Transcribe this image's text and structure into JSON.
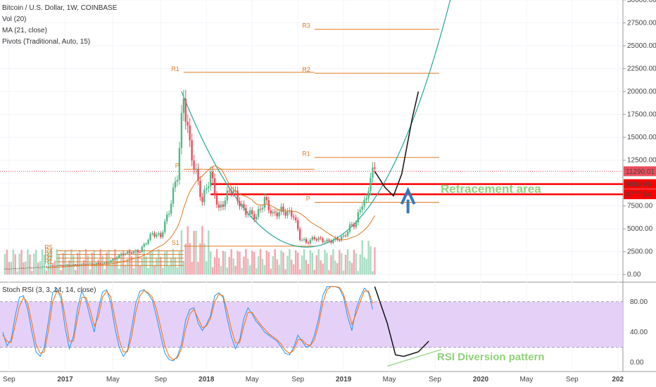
{
  "header": {
    "title": "Bitcoin / U.S. Dollar, 1W, COINBASE",
    "indicators": [
      "Vol (20)",
      "MA (21, close)",
      "Pivots (Traditional, Auto, 15)"
    ],
    "rsi_title": "Stoch RSI (3, 3, 14, 14, close)"
  },
  "colors": {
    "up": "#53b987",
    "down": "#eb4d5c",
    "pivot": "#e07a22",
    "ma": "#e07a22",
    "curve": "#26a69a",
    "rsi_k": "#2196f3",
    "rsi_d": "#ff6d00",
    "rsi_band": "#e1c9f7",
    "support": "#ff0000",
    "annotation": "#8fd27a"
  },
  "chart_data": [
    {
      "type": "candlestick",
      "title": "Bitcoin / U.S. Dollar, 1W, COINBASE",
      "x_ticks": [
        "Sep",
        "2017",
        "May",
        "Sep",
        "2018",
        "May",
        "Sep",
        "2019",
        "May",
        "Sep",
        "2020",
        "May",
        "Sep",
        "202"
      ],
      "y_ticks": [
        "30000.00",
        "27500.00",
        "25000.00",
        "22500.00",
        "20000.00",
        "17500.00",
        "15000.00",
        "12500.00",
        "10000.00",
        "7500.00",
        "5000.00",
        "2500.00",
        "0.00"
      ],
      "ylim": [
        -750,
        30000
      ],
      "price_path": [
        {
          "t": 0,
          "v": 600
        },
        {
          "t": 16,
          "v": 780
        },
        {
          "t": 26,
          "v": 960
        },
        {
          "t": 40,
          "v": 1150
        },
        {
          "t": 50,
          "v": 1250
        },
        {
          "t": 58,
          "v": 2300
        },
        {
          "t": 66,
          "v": 2600
        },
        {
          "t": 72,
          "v": 4500
        },
        {
          "t": 76,
          "v": 4200
        },
        {
          "t": 80,
          "v": 7000
        },
        {
          "t": 84,
          "v": 11000
        },
        {
          "t": 87,
          "v": 19500
        },
        {
          "t": 90,
          "v": 14000
        },
        {
          "t": 94,
          "v": 10000
        },
        {
          "t": 96,
          "v": 8000
        },
        {
          "t": 100,
          "v": 11000
        },
        {
          "t": 104,
          "v": 7000
        },
        {
          "t": 110,
          "v": 9500
        },
        {
          "t": 116,
          "v": 7000
        },
        {
          "t": 122,
          "v": 6300
        },
        {
          "t": 126,
          "v": 8200
        },
        {
          "t": 130,
          "v": 6500
        },
        {
          "t": 134,
          "v": 7000
        },
        {
          "t": 140,
          "v": 6500
        },
        {
          "t": 143,
          "v": 4000
        },
        {
          "t": 146,
          "v": 3500
        },
        {
          "t": 150,
          "v": 4000
        },
        {
          "t": 156,
          "v": 3600
        },
        {
          "t": 160,
          "v": 3800
        },
        {
          "t": 164,
          "v": 4100
        },
        {
          "t": 167,
          "v": 5200
        },
        {
          "t": 170,
          "v": 5700
        },
        {
          "t": 173,
          "v": 7900
        },
        {
          "t": 175,
          "v": 8000
        },
        {
          "t": 177,
          "v": 11000
        },
        {
          "t": 179,
          "v": 11290
        }
      ],
      "volume_series": true,
      "ma_period": 21,
      "pivot_labels": [
        "R3",
        "R2",
        "R1",
        "R1",
        "P",
        "P",
        "S1",
        "R5",
        "R4",
        "R3",
        "R2",
        "R1"
      ],
      "pivot_levels": [
        {
          "label": "R3",
          "value": 26800,
          "t0": 150,
          "t1": 210
        },
        {
          "label": "R2",
          "value": 22000,
          "t0": 150,
          "t1": 210
        },
        {
          "label": "R1",
          "value": 22100,
          "t0": 87,
          "t1": 150
        },
        {
          "label": "R1",
          "value": 12800,
          "t0": 150,
          "t1": 210
        },
        {
          "label": "P",
          "value": 11500,
          "t0": 87,
          "t1": 150
        },
        {
          "label": "P",
          "value": 7900,
          "t0": 150,
          "t1": 210
        },
        {
          "label": "S1",
          "value": 3100,
          "t0": 87,
          "t1": 150
        },
        {
          "label": "R5",
          "value": 2600,
          "t0": 26,
          "t1": 87
        },
        {
          "label": "R4",
          "value": 2200,
          "t0": 26,
          "t1": 87
        },
        {
          "label": "R3",
          "value": 1800,
          "t0": 26,
          "t1": 87
        },
        {
          "label": "R2",
          "value": 1400,
          "t0": 26,
          "t1": 87
        },
        {
          "label": "R1",
          "value": 1000,
          "t0": 26,
          "t1": 87
        }
      ],
      "levels": [
        {
          "value": 9884.98,
          "label": "9884.98",
          "color": "#ff0000"
        },
        {
          "value": 8777.54,
          "label": "8777.54",
          "color": "#ff0000"
        }
      ],
      "last_price": {
        "value": 11290.01,
        "label": "11290.01"
      },
      "annotations": [
        "Retracement area"
      ]
    },
    {
      "type": "line",
      "title": "Stoch RSI (3, 3, 14, 14, close)",
      "y_ticks": [
        "80.00",
        "40.00",
        "0.00"
      ],
      "ylim": [
        -12,
        105
      ],
      "band": [
        20,
        80
      ],
      "series": [
        {
          "name": "K",
          "values": [
            40,
            22,
            30,
            62,
            86,
            88,
            70,
            40,
            14,
            8,
            20,
            55,
            92,
            98,
            84,
            45,
            18,
            35,
            72,
            94,
            82,
            60,
            40,
            70,
            93,
            96,
            78,
            45,
            20,
            8,
            16,
            45,
            78,
            94,
            96,
            90,
            82,
            60,
            35,
            12,
            4,
            2,
            8,
            24,
            56,
            70,
            72,
            52,
            42,
            50,
            62,
            88,
            92,
            86,
            58,
            34,
            18,
            30,
            58,
            72,
            64,
            54,
            48,
            40,
            36,
            32,
            28,
            20,
            12,
            10,
            20,
            36,
            28,
            20,
            22,
            36,
            58,
            88,
            100,
            100,
            100,
            98,
            86,
            60,
            42,
            70,
            86,
            98,
            92,
            70
          ]
        },
        {
          "name": "D",
          "values": [
            36,
            28,
            26,
            50,
            74,
            86,
            78,
            52,
            24,
            12,
            14,
            42,
            80,
            94,
            90,
            60,
            28,
            28,
            60,
            86,
            86,
            70,
            48,
            60,
            86,
            94,
            86,
            58,
            30,
            14,
            14,
            34,
            66,
            88,
            95,
            92,
            86,
            70,
            46,
            22,
            8,
            4,
            6,
            18,
            44,
            64,
            70,
            58,
            46,
            48,
            58,
            80,
            90,
            88,
            68,
            44,
            26,
            26,
            48,
            66,
            66,
            58,
            50,
            44,
            38,
            34,
            30,
            24,
            16,
            12,
            16,
            30,
            30,
            24,
            22,
            30,
            50,
            78,
            96,
            100,
            100,
            99,
            90,
            70,
            50,
            64,
            80,
            94,
            94,
            78
          ]
        }
      ],
      "annotations": [
        "RSI Diversion pattern"
      ]
    }
  ]
}
